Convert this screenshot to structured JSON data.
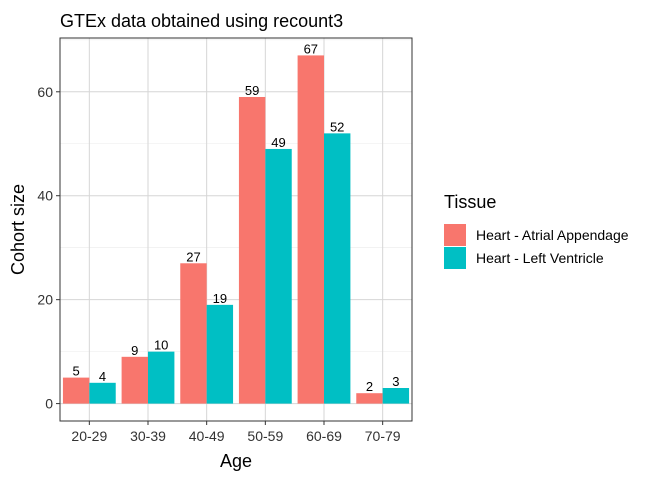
{
  "chart_data": {
    "type": "bar",
    "title": "GTEx data obtained using recount3",
    "xlabel": "Age",
    "ylabel": "Cohort size",
    "categories": [
      "20-29",
      "30-39",
      "40-49",
      "50-59",
      "60-69",
      "70-79"
    ],
    "series": [
      {
        "name": "Heart - Atrial Appendage",
        "color": "#F8766D",
        "values": [
          5,
          9,
          27,
          59,
          67,
          2
        ]
      },
      {
        "name": "Heart - Left Ventricle",
        "color": "#00BFC4",
        "values": [
          4,
          10,
          19,
          49,
          52,
          3
        ]
      }
    ],
    "ylim": [
      -3.35,
      70.35
    ],
    "yticks": [
      0,
      20,
      40,
      60
    ],
    "grid": true,
    "legend_title": "Tissue",
    "legend_position": "right"
  }
}
